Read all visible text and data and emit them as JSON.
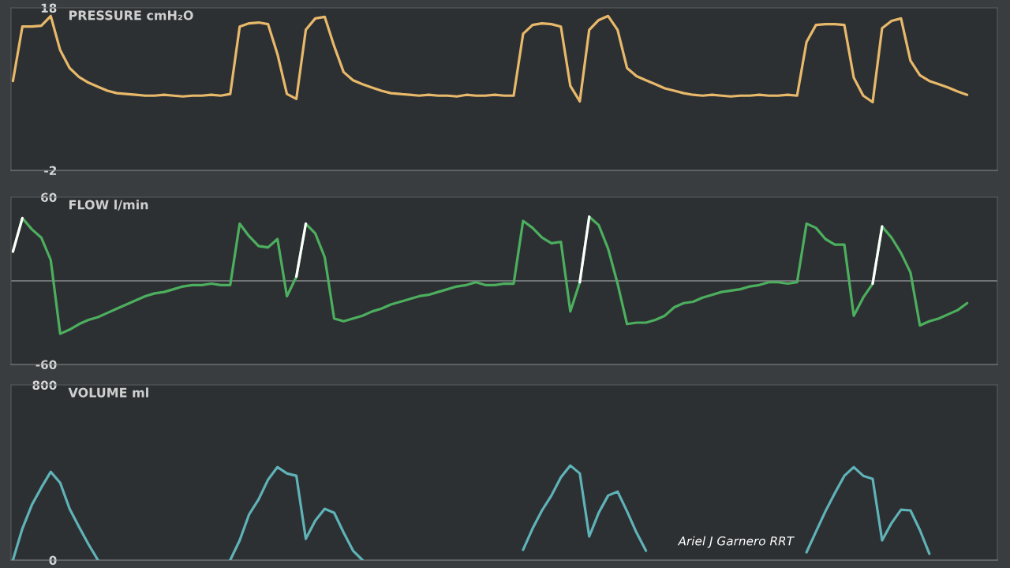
{
  "chart_data": [
    {
      "type": "line",
      "title": "PRESSURE cmH₂O",
      "tick_labels": "y",
      "ylim": [
        -2,
        18
      ],
      "yticks": [
        -2,
        18
      ],
      "categories": [
        null,
        null,
        null,
        null,
        null,
        null,
        null,
        null,
        null,
        null,
        null,
        null,
        null,
        null,
        null,
        null,
        null,
        null,
        null,
        null,
        null,
        null,
        null,
        null,
        null,
        null,
        null,
        null,
        null,
        null,
        null,
        null,
        null,
        null,
        null,
        null,
        null,
        null,
        null,
        null,
        null,
        null,
        null,
        null,
        null,
        null,
        null,
        null,
        null,
        null,
        null,
        null,
        null,
        null,
        null,
        null,
        null,
        null,
        null,
        null,
        null,
        null,
        null,
        null,
        null,
        null,
        null,
        null,
        null,
        null,
        null,
        null,
        null,
        null,
        null,
        null,
        null,
        null,
        null,
        null,
        null,
        null,
        null,
        null,
        null,
        null,
        null,
        null,
        null,
        null,
        null,
        null,
        null,
        null,
        null,
        null,
        null,
        null,
        null,
        null,
        null,
        null,
        null
      ],
      "series": [
        {
          "color": "#e8b96a",
          "values": [
            9.0,
            15.7,
            15.7,
            15.8,
            17.0,
            12.8,
            10.6,
            9.5,
            8.8,
            8.3,
            7.8,
            7.5,
            7.4,
            7.3,
            7.2,
            7.2,
            7.3,
            7.2,
            7.1,
            7.2,
            7.2,
            7.3,
            7.2,
            7.4,
            15.7,
            16.1,
            16.2,
            16.0,
            12.3,
            7.4,
            6.8,
            15.3,
            16.7,
            16.9,
            13.3,
            10.1,
            9.1,
            8.6,
            8.2,
            7.8,
            7.5,
            7.4,
            7.3,
            7.2,
            7.3,
            7.2,
            7.2,
            7.1,
            7.3,
            7.2,
            7.2,
            7.3,
            7.2,
            7.2,
            14.8,
            15.9,
            16.1,
            16.0,
            15.7,
            8.4,
            6.5,
            15.3,
            16.5,
            17.0,
            15.3,
            10.6,
            9.6,
            9.1,
            8.6,
            8.1,
            7.8,
            7.5,
            7.3,
            7.2,
            7.3,
            7.2,
            7.1,
            7.2,
            7.2,
            7.3,
            7.2,
            7.2,
            7.3,
            7.2,
            13.8,
            15.9,
            16.0,
            16.0,
            15.9,
            9.4,
            7.2,
            6.4,
            15.5,
            16.4,
            16.7,
            11.5,
            9.7,
            9.0,
            8.6,
            8.2,
            7.7,
            7.3,
            null
          ]
        }
      ]
    },
    {
      "type": "line",
      "title": "FLOW l/min",
      "tick_labels": "y",
      "ylim": [
        -60,
        60
      ],
      "yticks": [
        -60,
        60
      ],
      "ref_lines": [
        {
          "axis": "y",
          "value": 0,
          "color": "#8a8d90"
        }
      ],
      "categories": [
        null,
        null,
        null,
        null,
        null,
        null,
        null,
        null,
        null,
        null,
        null,
        null,
        null,
        null,
        null,
        null,
        null,
        null,
        null,
        null,
        null,
        null,
        null,
        null,
        null,
        null,
        null,
        null,
        null,
        null,
        null,
        null,
        null,
        null,
        null,
        null,
        null,
        null,
        null,
        null,
        null,
        null,
        null,
        null,
        null,
        null,
        null,
        null,
        null,
        null,
        null,
        null,
        null,
        null,
        null,
        null,
        null,
        null,
        null,
        null,
        null,
        null,
        null,
        null,
        null,
        null,
        null,
        null,
        null,
        null,
        null,
        null,
        null,
        null,
        null,
        null,
        null,
        null,
        null,
        null,
        null,
        null,
        null,
        null,
        null,
        null,
        null,
        null,
        null,
        null,
        null,
        null,
        null,
        null,
        null,
        null,
        null,
        null,
        null,
        null,
        null,
        null,
        null
      ],
      "series": [
        {
          "color": "#4caf5e",
          "values": [
            21,
            45,
            37,
            31,
            15,
            -38,
            -35,
            -31,
            -28,
            -26,
            -23,
            -20,
            -17,
            -14,
            -11,
            -9,
            -8,
            -6,
            -4,
            -3,
            -3,
            -2,
            -3,
            -3,
            41,
            32,
            25,
            24,
            30,
            -11,
            3,
            41,
            34,
            17,
            -27,
            -29,
            -27,
            -25,
            -22,
            -20,
            -17,
            -15,
            -13,
            -11,
            -10,
            -8,
            -6,
            -4,
            -3,
            -1,
            -3,
            -3,
            -2,
            -2,
            43,
            38,
            31,
            27,
            28,
            -22,
            -1,
            46,
            40,
            23,
            -2,
            -31,
            -30,
            -30,
            -28,
            -25,
            -19,
            -16,
            -15,
            -12,
            -10,
            -8,
            -7,
            -6,
            -4,
            -3,
            -1,
            -1,
            -2,
            -1,
            41,
            38,
            30,
            26,
            26,
            -25,
            -12,
            -2,
            39,
            31,
            20,
            6,
            -32,
            -29,
            -27,
            -24,
            -21,
            -16,
            null
          ]
        },
        {
          "color": "#ffffff",
          "values": [
            21,
            45,
            null,
            null,
            null,
            null,
            null,
            null,
            null,
            null,
            null,
            null,
            null,
            null,
            null,
            null,
            null,
            null,
            null,
            null,
            null,
            null,
            null,
            null,
            null,
            null,
            null,
            null,
            null,
            null,
            3,
            41,
            null,
            null,
            null,
            null,
            null,
            null,
            null,
            null,
            null,
            null,
            null,
            null,
            null,
            null,
            null,
            null,
            null,
            null,
            null,
            null,
            null,
            null,
            null,
            null,
            null,
            null,
            null,
            null,
            -1,
            46,
            null,
            null,
            null,
            null,
            null,
            null,
            null,
            null,
            null,
            null,
            null,
            null,
            null,
            null,
            null,
            null,
            null,
            null,
            null,
            null,
            null,
            null,
            null,
            null,
            null,
            null,
            null,
            null,
            null,
            -2,
            39,
            null,
            null,
            null,
            null,
            null,
            null,
            null,
            null,
            null,
            null
          ]
        }
      ]
    },
    {
      "type": "line",
      "title": "VOLUME ml",
      "tick_labels": "y",
      "ylim": [
        0,
        800
      ],
      "yticks": [
        0,
        800
      ],
      "annotations": [
        "Ariel J Garnero RRT"
      ],
      "categories": [
        null,
        null,
        null,
        null,
        null,
        null,
        null,
        null,
        null,
        null,
        null,
        null,
        null,
        null,
        null,
        null,
        null,
        null,
        null,
        null,
        null,
        null,
        null,
        null,
        null,
        null,
        null,
        null,
        null,
        null,
        null,
        null,
        null,
        null,
        null,
        null,
        null,
        null,
        null,
        null,
        null,
        null,
        null,
        null,
        null,
        null,
        null,
        null,
        null,
        null,
        null,
        null,
        null,
        null,
        null,
        null,
        null,
        null,
        null,
        null,
        null,
        null,
        null,
        null,
        null,
        null,
        null,
        null,
        null,
        null,
        null,
        null,
        null,
        null,
        null,
        null,
        null,
        null,
        null,
        null,
        null,
        null,
        null,
        null,
        null,
        null,
        null,
        null,
        null,
        null,
        null,
        null,
        null,
        null,
        null,
        null,
        null,
        null,
        null,
        null,
        null,
        null,
        null
      ],
      "series": [
        {
          "color": "#5fb3b8",
          "values": [
            0,
            144,
            252,
            331,
            403,
            353,
            234,
            151,
            72,
            0,
            null,
            null,
            null,
            null,
            null,
            null,
            null,
            null,
            null,
            null,
            null,
            null,
            null,
            0,
            90,
            209,
            277,
            367,
            425,
            396,
            385,
            97,
            180,
            234,
            216,
            126,
            43,
            0,
            null,
            null,
            null,
            null,
            null,
            null,
            null,
            null,
            null,
            null,
            null,
            null,
            null,
            null,
            null,
            null,
            47,
            144,
            227,
            295,
            378,
            432,
            396,
            108,
            216,
            295,
            313,
            223,
            126,
            43,
            null,
            null,
            null,
            null,
            null,
            null,
            null,
            null,
            null,
            null,
            null,
            null,
            null,
            null,
            null,
            null,
            36,
            130,
            223,
            306,
            385,
            425,
            385,
            371,
            90,
            169,
            230,
            227,
            137,
            29,
            null,
            null,
            null,
            null,
            null
          ]
        }
      ]
    }
  ]
}
